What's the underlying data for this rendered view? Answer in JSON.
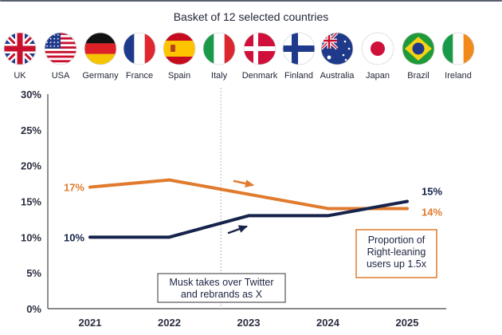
{
  "subtitle": "Basket of 12 selected countries",
  "countries": [
    {
      "name": "UK",
      "flag": "uk-flag"
    },
    {
      "name": "USA",
      "flag": "usa-flag"
    },
    {
      "name": "Germany",
      "flag": "germany-flag"
    },
    {
      "name": "France",
      "flag": "france-flag"
    },
    {
      "name": "Spain",
      "flag": "spain-flag"
    },
    {
      "name": "Italy",
      "flag": "italy-flag"
    },
    {
      "name": "Denmark",
      "flag": "denmark-flag"
    },
    {
      "name": "Finland",
      "flag": "finland-flag"
    },
    {
      "name": "Australia",
      "flag": "australia-flag"
    },
    {
      "name": "Japan",
      "flag": "japan-flag"
    },
    {
      "name": "Brazil",
      "flag": "brazil-flag"
    },
    {
      "name": "Ireland",
      "flag": "ireland-flag"
    }
  ],
  "chart_data": {
    "type": "line",
    "title": "",
    "xlabel": "",
    "ylabel": "",
    "categories": [
      "2021",
      "2022",
      "2023",
      "2024",
      "2025"
    ],
    "x": [
      2021,
      2022,
      2023,
      2024,
      2025
    ],
    "ylim": [
      0,
      30
    ],
    "yticks": [
      "0%",
      "5%",
      "10%",
      "15%",
      "20%",
      "25%",
      "30%"
    ],
    "grid": false,
    "series": [
      {
        "color": "#e07b2e",
        "values": [
          17,
          18,
          16,
          14,
          14
        ],
        "first_label": "17%",
        "last_label": "14%"
      },
      {
        "color": "#16234a",
        "values": [
          10,
          10,
          13,
          13,
          15
        ],
        "first_label": "10%",
        "last_label": "15%"
      }
    ],
    "event": {
      "x": 2022.65,
      "label_lines": [
        "Musk takes over Twitter",
        "and rebrands as X"
      ]
    },
    "callout": {
      "label_lines": [
        "Proportion of",
        "Right-leaning",
        "users up 1.5x"
      ],
      "border_color": "#e07b2e"
    }
  }
}
